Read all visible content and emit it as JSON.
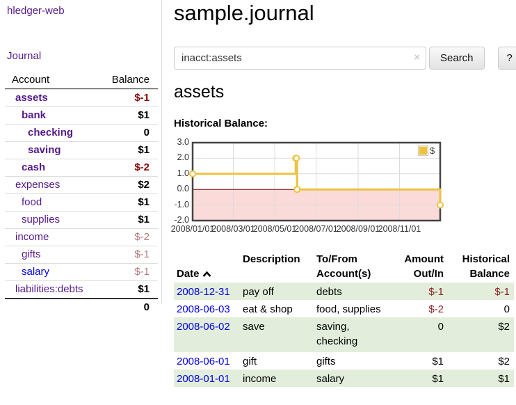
{
  "app": {
    "title": "hledger-web"
  },
  "nav": {
    "journal": "Journal"
  },
  "sidebar": {
    "headers": {
      "account": "Account",
      "balance": "Balance"
    },
    "accounts": [
      {
        "name": "assets",
        "balance": "$-1"
      },
      {
        "name": "bank",
        "balance": "$1"
      },
      {
        "name": "checking",
        "balance": "0"
      },
      {
        "name": "saving",
        "balance": "$1"
      },
      {
        "name": "cash",
        "balance": "$-2"
      },
      {
        "name": "expenses",
        "balance": "$2"
      },
      {
        "name": "food",
        "balance": "$1"
      },
      {
        "name": "supplies",
        "balance": "$1"
      },
      {
        "name": "income",
        "balance": "$-2"
      },
      {
        "name": "gifts",
        "balance": "$-1"
      },
      {
        "name": "salary",
        "balance": "$-1"
      },
      {
        "name": "liabilities:debts",
        "balance": "$1"
      }
    ],
    "total": "0"
  },
  "header": {
    "title": "sample.journal"
  },
  "search": {
    "value": "inacct:assets",
    "clear_label": "×",
    "submit_label": "Search",
    "help_label": "?"
  },
  "account_view": {
    "title": "assets",
    "chart_heading": "Historical Balance:"
  },
  "chart_data": {
    "type": "line",
    "step": true,
    "title": "Historical Balance:",
    "xlim": [
      "2008-01-01",
      "2008-12-31"
    ],
    "ylim": [
      -2.0,
      3.0
    ],
    "x_ticks": [
      "2008/01/01",
      "2008/03/01",
      "2008/05/01",
      "2008/07/01",
      "2008/09/01",
      "2008/11/01"
    ],
    "y_ticks": [
      3.0,
      2.0,
      1.0,
      0.0,
      -1.0,
      -2.0
    ],
    "series": [
      {
        "name": "$",
        "color": "#edc240",
        "points": [
          [
            "2008-01-01",
            1.0
          ],
          [
            "2008-06-01",
            2.0
          ],
          [
            "2008-06-02",
            2.0
          ],
          [
            "2008-06-03",
            0.0
          ],
          [
            "2008-12-31",
            -1.0
          ]
        ]
      }
    ],
    "grid": true,
    "legend": {
      "label": "$",
      "position": "top-right"
    },
    "negative_region_color": "#fbdada",
    "zero_line_color": "#8b0000",
    "border_color": "#444"
  },
  "register": {
    "headers": {
      "date": "Date",
      "description": "Description",
      "account": "To/From\nAccount(s)",
      "amount": "Amount\nOut/In",
      "balance": "Historical\nBalance"
    },
    "rows": [
      {
        "date": "2008-12-31",
        "description": "pay off",
        "account": "debts",
        "amount": "$-1",
        "balance": "$-1"
      },
      {
        "date": "2008-06-03",
        "description": "eat & shop",
        "account": "food, supplies",
        "amount": "$-2",
        "balance": "0"
      },
      {
        "date": "2008-06-02",
        "description": "save",
        "account": "saving,\nchecking",
        "amount": "0",
        "balance": "$2"
      },
      {
        "date": "2008-06-01",
        "description": "gift",
        "account": "gifts",
        "amount": "$1",
        "balance": "$2"
      },
      {
        "date": "2008-01-01",
        "description": "income",
        "account": "salary",
        "amount": "$1",
        "balance": "$1"
      }
    ]
  },
  "colors": {
    "link_purple": "#551a8b",
    "link_blue": "#0000e2",
    "negative_bold": "#8b0000",
    "negative_muted": "#b87878",
    "negative_table": "#8b2222",
    "row_green": "#e2eedb",
    "series_gold": "#edc240"
  }
}
